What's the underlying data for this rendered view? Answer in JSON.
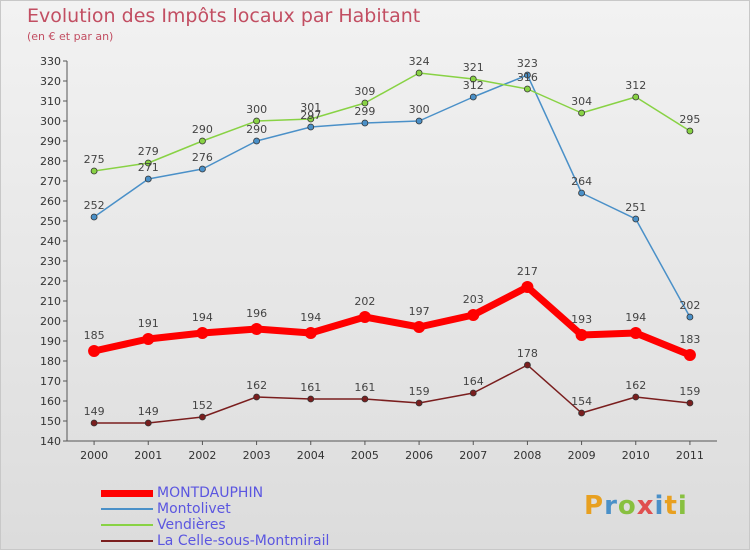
{
  "header": {
    "title": "Evolution des Impôts locaux par Habitant",
    "subtitle": "(en € et par an)"
  },
  "logo": {
    "text": "Proxiti"
  },
  "colors": {
    "title": "#c24e62",
    "montdauphin": "#ff0000",
    "montolivet": "#4a90c8",
    "vendieres": "#88d244",
    "la_celle": "#7a1e1e",
    "legend_text": "#5b56e0"
  },
  "chart_data": {
    "type": "line",
    "title": "Evolution des Impôts locaux par Habitant",
    "subtitle": "(en € et par an)",
    "xlabel": "",
    "ylabel": "",
    "x": [
      "2000",
      "2001",
      "2002",
      "2003",
      "2004",
      "2005",
      "2006",
      "2007",
      "2008",
      "2009",
      "2010",
      "2011"
    ],
    "ylim": [
      140,
      330
    ],
    "yticks": [
      140,
      150,
      160,
      170,
      180,
      190,
      200,
      210,
      220,
      230,
      240,
      250,
      260,
      270,
      280,
      290,
      300,
      310,
      320,
      330
    ],
    "grid": false,
    "legend": "bottom-left",
    "series": [
      {
        "name": "MONTDAUPHIN",
        "color": "#ff0000",
        "values": [
          185,
          191,
          194,
          196,
          194,
          202,
          197,
          203,
          217,
          193,
          194,
          183
        ]
      },
      {
        "name": "Montolivet",
        "color": "#4a90c8",
        "values": [
          252,
          271,
          276,
          290,
          297,
          299,
          300,
          312,
          323,
          264,
          251,
          202
        ]
      },
      {
        "name": "Vendières",
        "color": "#88d244",
        "values": [
          275,
          279,
          290,
          300,
          301,
          309,
          324,
          321,
          316,
          304,
          312,
          295
        ]
      },
      {
        "name": "La Celle-sous-Montmirail",
        "color": "#7a1e1e",
        "values": [
          149,
          149,
          152,
          162,
          161,
          161,
          159,
          164,
          178,
          154,
          162,
          159
        ]
      }
    ]
  }
}
